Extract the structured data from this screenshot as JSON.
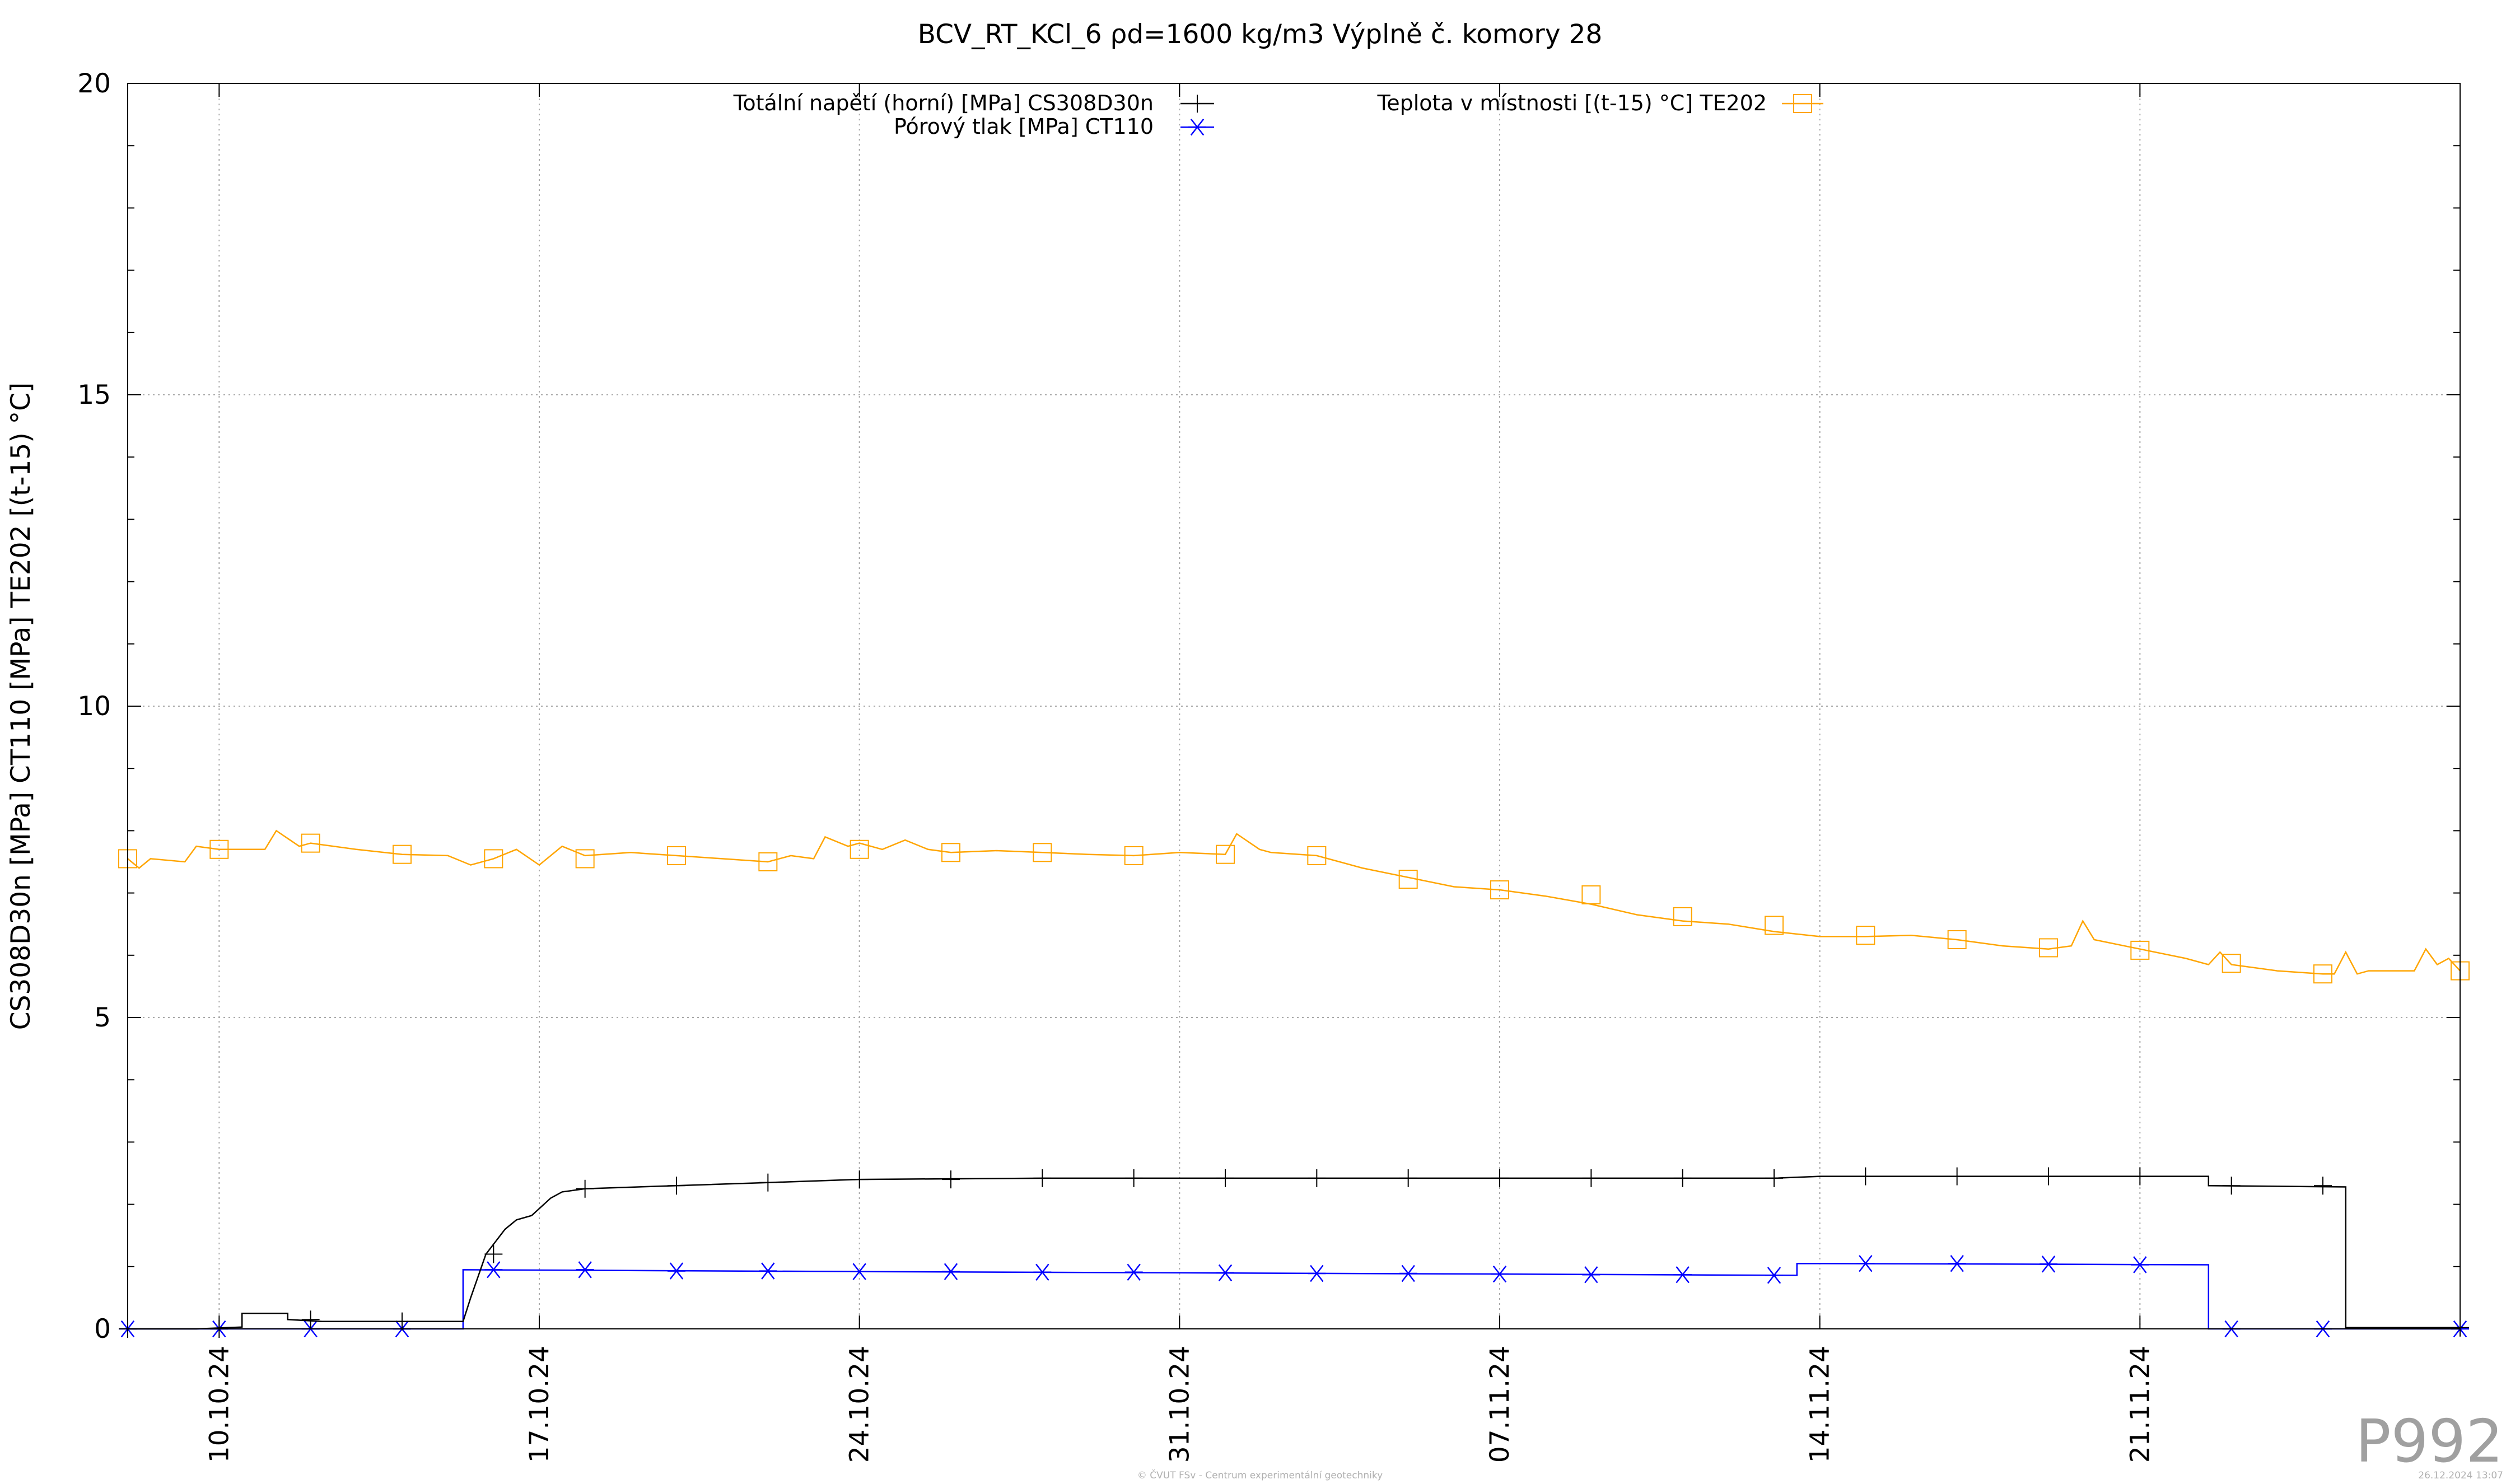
{
  "colors": {
    "total_stress": "#000000",
    "pore_pressure": "#0000ff",
    "temperature": "#ffa500",
    "grid": "#a9a9a9"
  },
  "chart_data": {
    "type": "line",
    "title": "BCV_RT_KCl_6 ρd=1600 kg/m3 Výplně č. komory 28",
    "xlabel": "",
    "ylabel": "CS308D30n [MPa] CT110 [MPa] TE202 [(t-15) °C]",
    "ylim": [
      0,
      20
    ],
    "xlim": [
      "2024-10-08",
      "2024-11-28"
    ],
    "yticks": [
      "0",
      "5",
      "10",
      "15",
      "20"
    ],
    "xticks": [
      {
        "date": "2024-10-10",
        "label": "10.10.24"
      },
      {
        "date": "2024-10-17",
        "label": "17.10.24"
      },
      {
        "date": "2024-10-24",
        "label": "24.10.24"
      },
      {
        "date": "2024-10-31",
        "label": "31.10.24"
      },
      {
        "date": "2024-11-07",
        "label": "07.11.24"
      },
      {
        "date": "2024-11-14",
        "label": "14.11.24"
      },
      {
        "date": "2024-11-21",
        "label": "21.11.24"
      }
    ],
    "grid": true,
    "legend_position": "top",
    "series": [
      {
        "name": "Totální napětí (horní) [MPa] CS308D30n",
        "color": "#000000",
        "marker": "plus",
        "step": true,
        "points": [
          [
            "2024-10-08",
            0.0
          ],
          [
            "2024-10-09 12:00",
            0.0
          ],
          [
            "2024-10-10 12:00",
            0.03
          ],
          [
            "2024-10-10 12:00",
            0.25
          ],
          [
            "2024-10-11 12:00",
            0.25
          ],
          [
            "2024-10-11 12:00",
            0.15
          ],
          [
            "2024-10-12 06:00",
            0.12
          ],
          [
            "2024-10-15 08:00",
            0.12
          ],
          [
            "2024-10-15 12:00",
            0.5
          ],
          [
            "2024-10-15 20:00",
            1.2
          ],
          [
            "2024-10-16 06:00",
            1.6
          ],
          [
            "2024-10-16 12:00",
            1.75
          ],
          [
            "2024-10-16 20:00",
            1.82
          ],
          [
            "2024-10-17 06:00",
            2.1
          ],
          [
            "2024-10-17 12:00",
            2.2
          ],
          [
            "2024-10-18",
            2.25
          ],
          [
            "2024-10-20",
            2.3
          ],
          [
            "2024-10-22",
            2.35
          ],
          [
            "2024-10-24",
            2.4
          ],
          [
            "2024-10-28",
            2.42
          ],
          [
            "2024-11-01",
            2.42
          ],
          [
            "2024-11-07",
            2.42
          ],
          [
            "2024-11-13",
            2.42
          ],
          [
            "2024-11-14",
            2.45
          ],
          [
            "2024-11-22 12:00",
            2.45
          ],
          [
            "2024-11-22 12:00",
            2.3
          ],
          [
            "2024-11-25 12:00",
            2.28
          ],
          [
            "2024-11-25 12:00",
            0.02
          ],
          [
            "2024-11-28",
            0.02
          ]
        ],
        "markers": [
          "2024-10-08",
          "2024-10-10",
          "2024-10-12",
          "2024-10-14",
          "2024-10-16",
          "2024-10-18",
          "2024-10-20",
          "2024-10-22",
          "2024-10-24",
          "2024-10-26",
          "2024-10-28",
          "2024-10-30",
          "2024-11-01",
          "2024-11-03",
          "2024-11-05",
          "2024-11-07",
          "2024-11-09",
          "2024-11-11",
          "2024-11-13",
          "2024-11-15",
          "2024-11-17",
          "2024-11-19",
          "2024-11-21",
          "2024-11-23",
          "2024-11-25",
          "2024-11-28"
        ]
      },
      {
        "name": "Pórový tlak [MPa] CT110",
        "color": "#0000ff",
        "marker": "asterisk",
        "step": true,
        "points": [
          [
            "2024-10-08",
            0.0
          ],
          [
            "2024-10-15 08:00",
            0.0
          ],
          [
            "2024-10-15 08:00",
            0.95
          ],
          [
            "2024-10-24",
            0.92
          ],
          [
            "2024-10-31",
            0.9
          ],
          [
            "2024-11-07",
            0.88
          ],
          [
            "2024-11-13 12:00",
            0.86
          ],
          [
            "2024-11-13 12:00",
            1.05
          ],
          [
            "2024-11-22 12:00",
            1.03
          ],
          [
            "2024-11-22 12:00",
            0.0
          ],
          [
            "2024-11-28",
            0.0
          ]
        ],
        "markers": [
          [
            "2024-10-08",
            0.0
          ],
          [
            "2024-10-10",
            0.0
          ],
          [
            "2024-10-12",
            0.0
          ],
          [
            "2024-10-14",
            0.0
          ],
          [
            "2024-10-16",
            0.95
          ],
          [
            "2024-10-18",
            0.95
          ],
          [
            "2024-10-20",
            0.93
          ],
          [
            "2024-10-22",
            0.93
          ],
          [
            "2024-10-24",
            0.92
          ],
          [
            "2024-10-26",
            0.92
          ],
          [
            "2024-10-28",
            0.91
          ],
          [
            "2024-10-30",
            0.91
          ],
          [
            "2024-11-01",
            0.9
          ],
          [
            "2024-11-03",
            0.89
          ],
          [
            "2024-11-05",
            0.89
          ],
          [
            "2024-11-07",
            0.88
          ],
          [
            "2024-11-09",
            0.87
          ],
          [
            "2024-11-11",
            0.87
          ],
          [
            "2024-11-13",
            0.86
          ],
          [
            "2024-11-15",
            1.05
          ],
          [
            "2024-11-17",
            1.05
          ],
          [
            "2024-11-19",
            1.04
          ],
          [
            "2024-11-21",
            1.03
          ],
          [
            "2024-11-23",
            0.0
          ],
          [
            "2024-11-25",
            0.0
          ],
          [
            "2024-11-28",
            0.0
          ]
        ]
      },
      {
        "name": "Teplota v místnosti [(t-15) °C] TE202",
        "color": "#ffa500",
        "marker": "square",
        "step": false,
        "points": [
          [
            "2024-10-08",
            7.55
          ],
          [
            "2024-10-08 06:00",
            7.4
          ],
          [
            "2024-10-08 12:00",
            7.55
          ],
          [
            "2024-10-09 06:00",
            7.5
          ],
          [
            "2024-10-09 12:00",
            7.75
          ],
          [
            "2024-10-10",
            7.7
          ],
          [
            "2024-10-11",
            7.7
          ],
          [
            "2024-10-11 06:00",
            8.0
          ],
          [
            "2024-10-11 18:00",
            7.75
          ],
          [
            "2024-10-12",
            7.8
          ],
          [
            "2024-10-13",
            7.7
          ],
          [
            "2024-10-14",
            7.62
          ],
          [
            "2024-10-15",
            7.6
          ],
          [
            "2024-10-15 12:00",
            7.45
          ],
          [
            "2024-10-16",
            7.55
          ],
          [
            "2024-10-16 12:00",
            7.7
          ],
          [
            "2024-10-17",
            7.45
          ],
          [
            "2024-10-17 12:00",
            7.75
          ],
          [
            "2024-10-18",
            7.6
          ],
          [
            "2024-10-19",
            7.65
          ],
          [
            "2024-10-20",
            7.6
          ],
          [
            "2024-10-21",
            7.55
          ],
          [
            "2024-10-22",
            7.5
          ],
          [
            "2024-10-22 12:00",
            7.6
          ],
          [
            "2024-10-23",
            7.55
          ],
          [
            "2024-10-23 06:00",
            7.9
          ],
          [
            "2024-10-23 18:00",
            7.75
          ],
          [
            "2024-10-24",
            7.8
          ],
          [
            "2024-10-24 12:00",
            7.7
          ],
          [
            "2024-10-25",
            7.85
          ],
          [
            "2024-10-25 12:00",
            7.7
          ],
          [
            "2024-10-26",
            7.65
          ],
          [
            "2024-10-27",
            7.68
          ],
          [
            "2024-10-28",
            7.65
          ],
          [
            "2024-10-29",
            7.62
          ],
          [
            "2024-10-30",
            7.6
          ],
          [
            "2024-10-31",
            7.65
          ],
          [
            "2024-11-01",
            7.62
          ],
          [
            "2024-11-01 06:00",
            7.95
          ],
          [
            "2024-11-01 18:00",
            7.7
          ],
          [
            "2024-11-02",
            7.65
          ],
          [
            "2024-11-03",
            7.6
          ],
          [
            "2024-11-04",
            7.4
          ],
          [
            "2024-11-05",
            7.25
          ],
          [
            "2024-11-06",
            7.1
          ],
          [
            "2024-11-07",
            7.05
          ],
          [
            "2024-11-08",
            6.95
          ],
          [
            "2024-11-09",
            6.82
          ],
          [
            "2024-11-10",
            6.65
          ],
          [
            "2024-11-11",
            6.55
          ],
          [
            "2024-11-12",
            6.5
          ],
          [
            "2024-11-13",
            6.38
          ],
          [
            "2024-11-14",
            6.3
          ],
          [
            "2024-11-15",
            6.3
          ],
          [
            "2024-11-16",
            6.32
          ],
          [
            "2024-11-17",
            6.25
          ],
          [
            "2024-11-18",
            6.15
          ],
          [
            "2024-11-19",
            6.1
          ],
          [
            "2024-11-19 12:00",
            6.15
          ],
          [
            "2024-11-19 18:00",
            6.55
          ],
          [
            "2024-11-20",
            6.25
          ],
          [
            "2024-11-21",
            6.1
          ],
          [
            "2024-11-22",
            5.95
          ],
          [
            "2024-11-22 12:00",
            5.85
          ],
          [
            "2024-11-22 18:00",
            6.05
          ],
          [
            "2024-11-23",
            5.85
          ],
          [
            "2024-11-24",
            5.75
          ],
          [
            "2024-11-25",
            5.7
          ],
          [
            "2024-11-25 06:00",
            5.7
          ],
          [
            "2024-11-25 12:00",
            6.05
          ],
          [
            "2024-11-25 18:00",
            5.7
          ],
          [
            "2024-11-26",
            5.75
          ],
          [
            "2024-11-27",
            5.75
          ],
          [
            "2024-11-27 06:00",
            6.1
          ],
          [
            "2024-11-27 12:00",
            5.85
          ],
          [
            "2024-11-27 18:00",
            5.95
          ],
          [
            "2024-11-28",
            5.75
          ]
        ],
        "markers": [
          [
            "2024-10-08",
            7.55
          ],
          [
            "2024-10-10",
            7.7
          ],
          [
            "2024-10-12",
            7.8
          ],
          [
            "2024-10-14",
            7.62
          ],
          [
            "2024-10-16",
            7.55
          ],
          [
            "2024-10-18",
            7.55
          ],
          [
            "2024-10-20",
            7.6
          ],
          [
            "2024-10-22",
            7.5
          ],
          [
            "2024-10-24",
            7.7
          ],
          [
            "2024-10-26",
            7.65
          ],
          [
            "2024-10-28",
            7.65
          ],
          [
            "2024-10-30",
            7.6
          ],
          [
            "2024-11-01",
            7.62
          ],
          [
            "2024-11-03",
            7.6
          ],
          [
            "2024-11-05",
            7.22
          ],
          [
            "2024-11-07",
            7.05
          ],
          [
            "2024-11-09",
            6.97
          ],
          [
            "2024-11-11",
            6.62
          ],
          [
            "2024-11-13",
            6.48
          ],
          [
            "2024-11-15",
            6.32
          ],
          [
            "2024-11-17",
            6.25
          ],
          [
            "2024-11-19",
            6.12
          ],
          [
            "2024-11-21",
            6.08
          ],
          [
            "2024-11-23",
            5.87
          ],
          [
            "2024-11-25",
            5.7
          ],
          [
            "2024-11-28",
            5.75
          ]
        ]
      }
    ]
  },
  "plot_id": "P992",
  "footer_center": "© ČVUT FSv - Centrum experimentální geotechniky",
  "footer_right": "26.12.2024 13:07"
}
